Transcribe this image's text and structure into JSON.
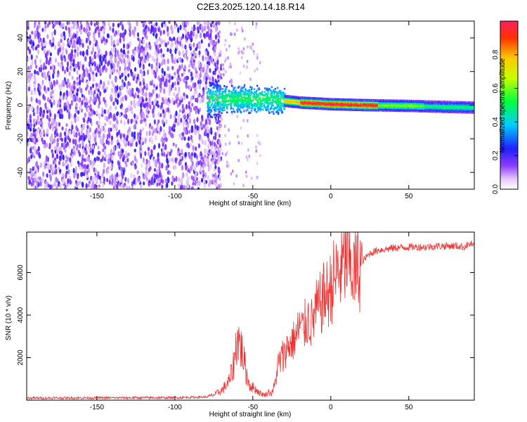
{
  "title": "C2E3.2025.120.14.18.R14",
  "chart_data": [
    {
      "type": "heatmap",
      "xlabel": "Height of straight line (km)",
      "ylabel": "Frequency (Hz)",
      "xlim": [
        -195,
        92
      ],
      "ylim": [
        -50,
        50
      ],
      "xticks": [
        -150,
        -100,
        -50,
        0,
        50
      ],
      "yticks": [
        -40,
        -20,
        0,
        20,
        40
      ],
      "colorbar": {
        "label": "Normalized spectral amplitude",
        "range": [
          0.0,
          1.0
        ],
        "ticks": [
          0.0,
          0.2,
          0.4,
          0.6,
          0.8
        ],
        "colormap": "rainbow (white-violet-blue-cyan-green-yellow-red)"
      },
      "features": {
        "noise_region_x": [
          -195,
          -73
        ],
        "dispersed_signal_x": [
          -80,
          -30
        ],
        "dispersed_signal_frequency_spread_hz": [
          -8,
          10
        ],
        "carrier_line_x": [
          -30,
          92
        ],
        "carrier_frequency_hz_at_x": [
          [
            -40,
            4
          ],
          [
            -20,
            2
          ],
          [
            0,
            1
          ],
          [
            20,
            0.5
          ],
          [
            50,
            0
          ],
          [
            90,
            -1
          ]
        ],
        "peak_amplitude_x": [
          -20,
          30
        ]
      },
      "grid": false
    },
    {
      "type": "line",
      "xlabel": "Height of straight line (km)",
      "ylabel": "SNR (10 * v/v)",
      "xlim": [
        -195,
        92
      ],
      "ylim": [
        0,
        7900
      ],
      "xticks": [
        -150,
        -100,
        -50,
        0,
        50
      ],
      "yticks": [
        2000,
        4000,
        6000
      ],
      "series": [
        {
          "color": "#ee3333",
          "x": [
            -195,
            -150,
            -100,
            -80,
            -75,
            -70,
            -65,
            -62,
            -60,
            -58,
            -56,
            -54,
            -52,
            -50,
            -48,
            -45,
            -42,
            -40,
            -38,
            -36,
            -34,
            -32,
            -30,
            -28,
            -25,
            -22,
            -20,
            -18,
            -15,
            -12,
            -10,
            -8,
            -5,
            -2,
            0,
            2,
            5,
            8,
            10,
            12,
            15,
            18,
            20,
            25,
            30,
            40,
            50,
            60,
            70,
            80,
            85,
            88,
            90,
            92
          ],
          "y": [
            100,
            110,
            120,
            150,
            250,
            450,
            900,
            1800,
            3000,
            2600,
            2000,
            1200,
            700,
            600,
            500,
            300,
            250,
            400,
            300,
            700,
            1600,
            1900,
            2100,
            2500,
            2700,
            3000,
            3500,
            3300,
            3800,
            3600,
            4200,
            4300,
            4800,
            5000,
            5300,
            5700,
            6000,
            6300,
            6600,
            6400,
            6000,
            6200,
            6500,
            6900,
            7050,
            7150,
            7200,
            7200,
            7250,
            7250,
            7200,
            7300,
            7350,
            7200
          ]
        }
      ],
      "grid": false
    }
  ]
}
